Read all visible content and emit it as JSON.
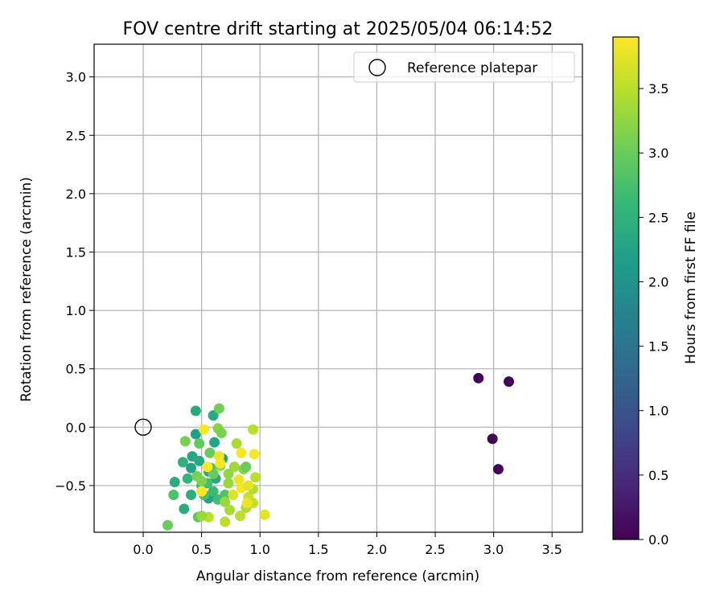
{
  "chart_data": {
    "type": "scatter",
    "title": "FOV centre drift starting at 2025/05/04 06:14:52",
    "xlabel": "Angular distance from reference (arcmin)",
    "ylabel": "Rotation from reference (arcmin)",
    "xlim": [
      -0.42,
      3.76
    ],
    "ylim": [
      -0.9,
      3.28
    ],
    "xticks": [
      0.0,
      0.5,
      1.0,
      1.5,
      2.0,
      2.5,
      3.0,
      3.5
    ],
    "yticks": [
      -0.5,
      0.0,
      0.5,
      1.0,
      1.5,
      2.0,
      2.5,
      3.0
    ],
    "xtick_labels": [
      "0.0",
      "0.5",
      "1.0",
      "1.5",
      "2.0",
      "2.5",
      "3.0",
      "3.5"
    ],
    "ytick_labels": [
      "−0.5",
      "0.0",
      "0.5",
      "1.0",
      "1.5",
      "2.0",
      "2.5",
      "3.0"
    ],
    "grid": true,
    "legend": {
      "position": "top-right",
      "entries": [
        "Reference platepar"
      ]
    },
    "reference_point": {
      "x": 0.0,
      "y": 0.0,
      "label": "Reference platepar"
    },
    "colorbar": {
      "label": "Hours from first FF file",
      "colormap": "viridis",
      "range": [
        0.0,
        3.9
      ],
      "ticks": [
        0.0,
        0.5,
        1.0,
        1.5,
        2.0,
        2.5,
        3.0,
        3.5
      ],
      "tick_labels": [
        "0.0",
        "0.5",
        "1.0",
        "1.5",
        "2.0",
        "2.5",
        "3.0",
        "3.5"
      ]
    },
    "points": [
      {
        "x": 2.87,
        "y": 0.42,
        "c": 0.0
      },
      {
        "x": 3.13,
        "y": 0.39,
        "c": 0.02
      },
      {
        "x": 2.99,
        "y": -0.1,
        "c": 0.04
      },
      {
        "x": 3.04,
        "y": -0.36,
        "c": 0.05
      },
      {
        "x": 0.45,
        "y": 0.14,
        "c": 2.35
      },
      {
        "x": 0.6,
        "y": 0.1,
        "c": 2.35
      },
      {
        "x": 0.45,
        "y": -0.06,
        "c": 2.2
      },
      {
        "x": 0.61,
        "y": -0.13,
        "c": 2.3
      },
      {
        "x": 0.68,
        "y": -0.27,
        "c": 2.25
      },
      {
        "x": 0.42,
        "y": -0.25,
        "c": 2.3
      },
      {
        "x": 0.48,
        "y": -0.29,
        "c": 2.35
      },
      {
        "x": 0.41,
        "y": -0.35,
        "c": 2.25
      },
      {
        "x": 0.56,
        "y": -0.38,
        "c": 2.35
      },
      {
        "x": 0.62,
        "y": -0.44,
        "c": 2.3
      },
      {
        "x": 0.56,
        "y": -0.61,
        "c": 2.25
      },
      {
        "x": 0.27,
        "y": -0.47,
        "c": 2.4
      },
      {
        "x": 0.35,
        "y": -0.7,
        "c": 2.4
      },
      {
        "x": 0.41,
        "y": -0.58,
        "c": 2.45
      },
      {
        "x": 0.34,
        "y": -0.3,
        "c": 2.5
      },
      {
        "x": 0.38,
        "y": -0.44,
        "c": 2.55
      },
      {
        "x": 0.5,
        "y": -0.5,
        "c": 2.6
      },
      {
        "x": 0.55,
        "y": -0.48,
        "c": 2.7
      },
      {
        "x": 0.6,
        "y": -0.55,
        "c": 2.65
      },
      {
        "x": 0.52,
        "y": -0.58,
        "c": 2.75
      },
      {
        "x": 0.58,
        "y": -0.35,
        "c": 2.8
      },
      {
        "x": 0.7,
        "y": -0.58,
        "c": 2.8
      },
      {
        "x": 0.64,
        "y": -0.62,
        "c": 2.7
      },
      {
        "x": 0.26,
        "y": -0.58,
        "c": 2.8
      },
      {
        "x": 0.47,
        "y": -0.77,
        "c": 2.9
      },
      {
        "x": 0.21,
        "y": -0.84,
        "c": 3.0
      },
      {
        "x": 0.48,
        "y": -0.14,
        "c": 2.95
      },
      {
        "x": 0.36,
        "y": -0.12,
        "c": 3.1
      },
      {
        "x": 0.65,
        "y": 0.16,
        "c": 3.05
      },
      {
        "x": 0.64,
        "y": -0.01,
        "c": 3.2
      },
      {
        "x": 0.67,
        "y": -0.05,
        "c": 3.1
      },
      {
        "x": 0.46,
        "y": -0.42,
        "c": 3.1
      },
      {
        "x": 0.5,
        "y": -0.46,
        "c": 3.15
      },
      {
        "x": 0.57,
        "y": -0.22,
        "c": 3.0
      },
      {
        "x": 0.6,
        "y": -0.4,
        "c": 3.0
      },
      {
        "x": 0.66,
        "y": -0.33,
        "c": 3.2
      },
      {
        "x": 0.73,
        "y": -0.4,
        "c": 3.25
      },
      {
        "x": 0.73,
        "y": -0.48,
        "c": 3.3
      },
      {
        "x": 0.78,
        "y": -0.34,
        "c": 3.35
      },
      {
        "x": 0.8,
        "y": -0.14,
        "c": 3.4
      },
      {
        "x": 0.86,
        "y": -0.36,
        "c": 3.2
      },
      {
        "x": 0.88,
        "y": -0.34,
        "c": 3.0
      },
      {
        "x": 0.7,
        "y": -0.64,
        "c": 3.3
      },
      {
        "x": 0.74,
        "y": -0.71,
        "c": 3.4
      },
      {
        "x": 0.7,
        "y": -0.81,
        "c": 3.5
      },
      {
        "x": 0.56,
        "y": -0.77,
        "c": 3.5
      },
      {
        "x": 0.5,
        "y": -0.76,
        "c": 3.3
      },
      {
        "x": 0.88,
        "y": -0.69,
        "c": 3.45
      },
      {
        "x": 0.83,
        "y": -0.76,
        "c": 3.5
      },
      {
        "x": 0.9,
        "y": -0.6,
        "c": 3.6
      },
      {
        "x": 0.94,
        "y": -0.65,
        "c": 3.55
      },
      {
        "x": 0.94,
        "y": -0.53,
        "c": 3.45
      },
      {
        "x": 0.96,
        "y": -0.43,
        "c": 3.5
      },
      {
        "x": 0.94,
        "y": -0.02,
        "c": 3.5
      },
      {
        "x": 1.04,
        "y": -0.75,
        "c": 3.75
      },
      {
        "x": 0.52,
        "y": -0.02,
        "c": 3.85
      },
      {
        "x": 0.65,
        "y": -0.25,
        "c": 3.8
      },
      {
        "x": 0.66,
        "y": -0.31,
        "c": 3.85
      },
      {
        "x": 0.55,
        "y": -0.34,
        "c": 3.9
      },
      {
        "x": 0.84,
        "y": -0.22,
        "c": 3.85
      },
      {
        "x": 0.95,
        "y": -0.23,
        "c": 3.85
      },
      {
        "x": 0.82,
        "y": -0.45,
        "c": 3.8
      },
      {
        "x": 0.84,
        "y": -0.52,
        "c": 3.85
      },
      {
        "x": 0.9,
        "y": -0.5,
        "c": 3.75
      },
      {
        "x": 0.5,
        "y": -0.55,
        "c": 3.9
      },
      {
        "x": 0.77,
        "y": -0.58,
        "c": 3.7
      },
      {
        "x": 0.89,
        "y": -0.65,
        "c": 3.8
      }
    ]
  }
}
